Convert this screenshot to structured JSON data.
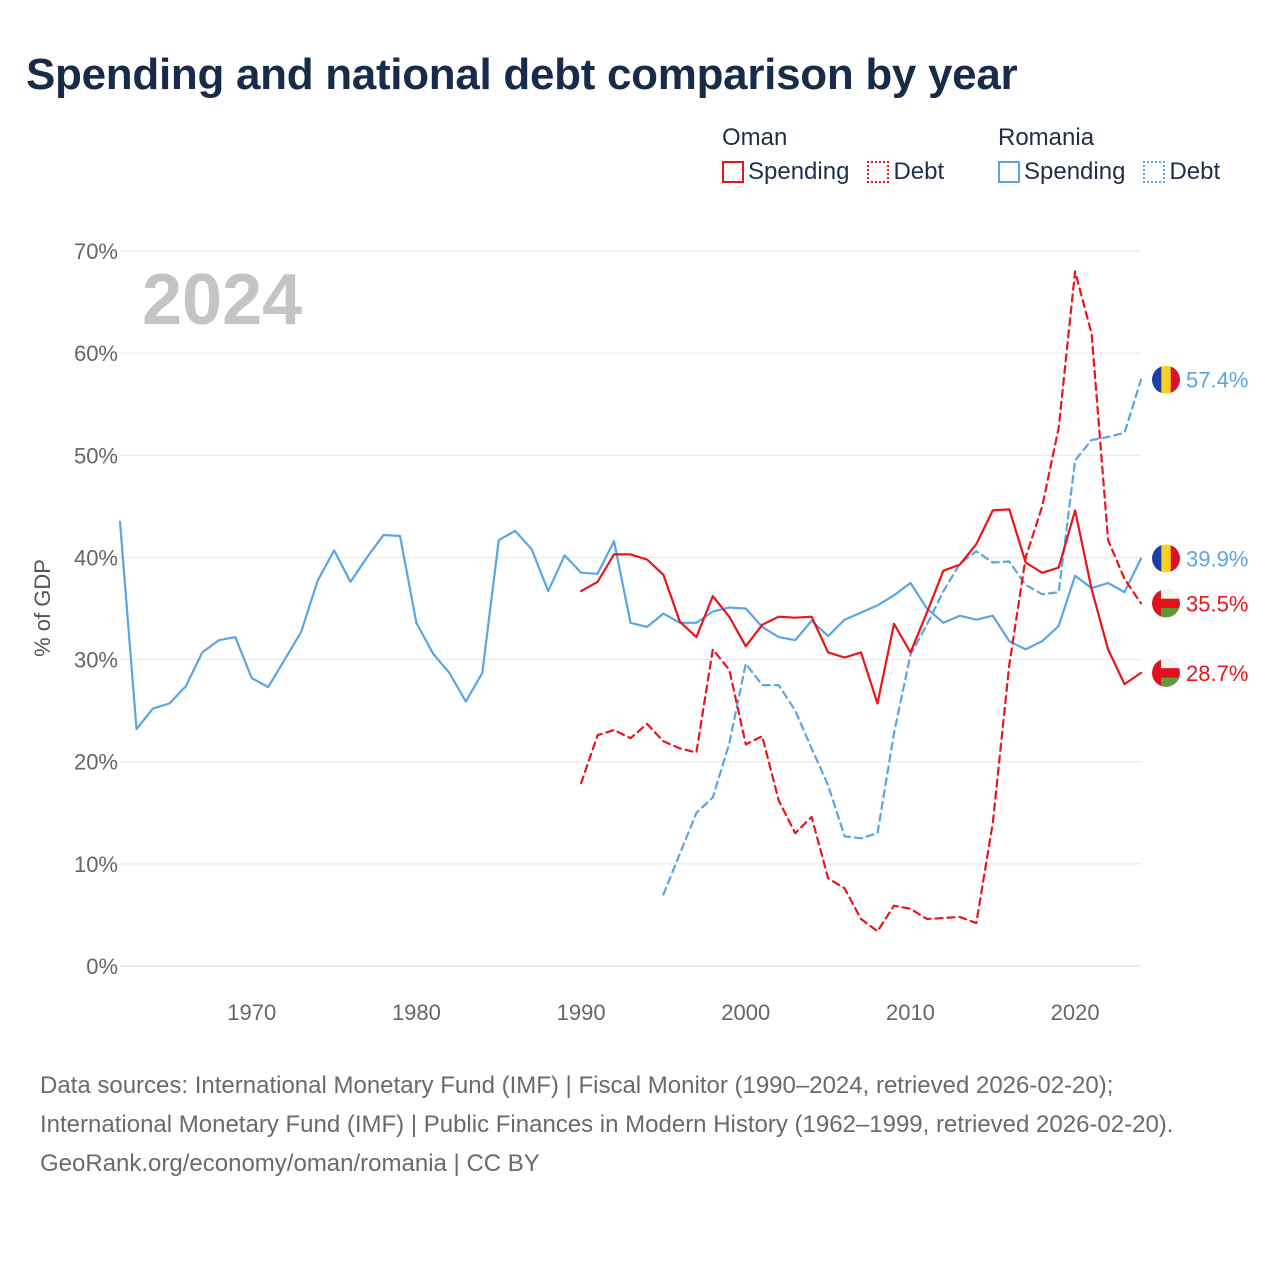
{
  "title": "Spending and national debt comparison by year",
  "legend": {
    "groups": [
      {
        "name": "Oman",
        "color": "#e8151b",
        "items": [
          {
            "label": "Spending",
            "style": "solid"
          },
          {
            "label": "Debt",
            "style": "dotted"
          }
        ]
      },
      {
        "name": "Romania",
        "color": "#5aa5e6",
        "items": [
          {
            "label": "Spending",
            "style": "solid"
          },
          {
            "label": "Debt",
            "style": "dotted"
          }
        ]
      }
    ]
  },
  "chart_data": {
    "type": "line",
    "year_label": "2024",
    "ylabel": "% of GDP",
    "xlim": [
      1962,
      2024
    ],
    "ylim": [
      0,
      70
    ],
    "x_ticks": [
      1970,
      1980,
      1990,
      2000,
      2010,
      2020
    ],
    "x_tick_labels": [
      "1970",
      "1980",
      "1990",
      "2000",
      "2010",
      "2020"
    ],
    "y_ticks": [
      0,
      10,
      20,
      30,
      40,
      50,
      60,
      70
    ],
    "y_tick_labels": [
      "0%",
      "10%",
      "20%",
      "30%",
      "40%",
      "50%",
      "60%",
      "70%"
    ],
    "grid": true,
    "series": [
      {
        "name": "Romania Spending",
        "country": "Romania",
        "color": "#5aa5e6",
        "dash": "solid",
        "end_label": "39.9%",
        "x": [
          1962,
          1963,
          1964,
          1965,
          1966,
          1967,
          1968,
          1969,
          1970,
          1971,
          1972,
          1973,
          1974,
          1975,
          1976,
          1977,
          1978,
          1979,
          1980,
          1981,
          1982,
          1983,
          1984,
          1985,
          1986,
          1987,
          1988,
          1989,
          1990,
          1991,
          1992,
          1993,
          1994,
          1995,
          1996,
          1997,
          1998,
          1999,
          2000,
          2001,
          2002,
          2003,
          2004,
          2005,
          2006,
          2007,
          2008,
          2009,
          2010,
          2011,
          2012,
          2013,
          2014,
          2015,
          2016,
          2017,
          2018,
          2019,
          2020,
          2021,
          2022,
          2023,
          2024
        ],
        "values": [
          43.5,
          23.2,
          25.2,
          25.7,
          27.4,
          30.7,
          31.9,
          32.2,
          28.2,
          27.3,
          30.0,
          32.7,
          37.7,
          40.7,
          37.6,
          40.0,
          42.2,
          42.1,
          33.6,
          30.6,
          28.7,
          25.9,
          28.7,
          41.7,
          42.6,
          40.8,
          36.7,
          40.2,
          38.5,
          38.4,
          41.6,
          33.6,
          33.2,
          34.5,
          33.6,
          33.6,
          34.7,
          35.1,
          35.0,
          33.2,
          32.2,
          31.9,
          33.8,
          32.3,
          33.9,
          34.6,
          35.3,
          36.3,
          37.5,
          35.0,
          33.6,
          34.3,
          33.9,
          34.3,
          31.8,
          31.0,
          31.8,
          33.3,
          38.2,
          37.0,
          37.5,
          36.6,
          39.9
        ]
      },
      {
        "name": "Romania Debt",
        "country": "Romania",
        "color": "#5aa5e6",
        "dash": "dashed",
        "end_label": "57.4%",
        "x": [
          1995,
          1996,
          1997,
          1998,
          1999,
          2000,
          2001,
          2002,
          2003,
          2004,
          2005,
          2006,
          2007,
          2008,
          2009,
          2010,
          2011,
          2012,
          2013,
          2014,
          2015,
          2016,
          2017,
          2018,
          2019,
          2020,
          2021,
          2022,
          2023,
          2024
        ],
        "values": [
          7.0,
          11.0,
          15.0,
          16.5,
          21.8,
          29.6,
          27.5,
          27.5,
          25.0,
          21.3,
          17.7,
          12.7,
          12.5,
          13.0,
          22.8,
          30.5,
          33.4,
          36.7,
          39.4,
          40.6,
          39.5,
          39.6,
          37.3,
          36.4,
          36.6,
          49.5,
          51.5,
          51.8,
          52.2,
          57.4
        ]
      },
      {
        "name": "Oman Spending",
        "country": "Oman",
        "color": "#e8151b",
        "dash": "solid",
        "end_label": "28.7%",
        "x": [
          1990,
          1991,
          1992,
          1993,
          1994,
          1995,
          1996,
          1997,
          1998,
          1999,
          2000,
          2001,
          2002,
          2003,
          2004,
          2005,
          2006,
          2007,
          2008,
          2009,
          2010,
          2011,
          2012,
          2013,
          2014,
          2015,
          2016,
          2017,
          2018,
          2019,
          2020,
          2021,
          2022,
          2023,
          2024
        ],
        "values": [
          36.7,
          37.6,
          40.3,
          40.3,
          39.8,
          38.3,
          33.7,
          32.2,
          36.2,
          34.2,
          31.3,
          33.4,
          34.2,
          34.1,
          34.2,
          30.7,
          30.2,
          30.7,
          25.7,
          33.5,
          30.7,
          34.6,
          38.7,
          39.3,
          41.3,
          44.6,
          44.7,
          39.5,
          38.5,
          39.0,
          44.6,
          36.9,
          31.0,
          27.6,
          28.7
        ]
      },
      {
        "name": "Oman Debt",
        "country": "Oman",
        "color": "#e8151b",
        "dash": "dashed",
        "end_label": "35.5%",
        "x": [
          1990,
          1991,
          1992,
          1993,
          1994,
          1995,
          1996,
          1997,
          1998,
          1999,
          2000,
          2001,
          2002,
          2003,
          2004,
          2005,
          2006,
          2007,
          2008,
          2009,
          2010,
          2011,
          2012,
          2013,
          2014,
          2015,
          2016,
          2017,
          2018,
          2019,
          2020,
          2021,
          2022,
          2023,
          2024
        ],
        "values": [
          17.9,
          22.6,
          23.1,
          22.3,
          23.7,
          22.0,
          21.3,
          20.9,
          31.0,
          29.0,
          21.7,
          22.5,
          16.2,
          13.0,
          14.6,
          8.6,
          7.6,
          4.6,
          3.4,
          5.9,
          5.6,
          4.6,
          4.7,
          4.8,
          4.2,
          14.0,
          29.5,
          40.0,
          45.0,
          52.7,
          68.0,
          61.9,
          41.7,
          37.9,
          35.5
        ]
      }
    ]
  },
  "footer": {
    "sources": "Data sources: International Monetary Fund (IMF) | Fiscal Monitor (1990–2024, retrieved 2026-02-20); International Monetary Fund (IMF) | Public Finances in Modern History (1962–1999, retrieved 2026-02-20).",
    "credit": "GeoRank.org/economy/oman/romania | CC BY"
  }
}
